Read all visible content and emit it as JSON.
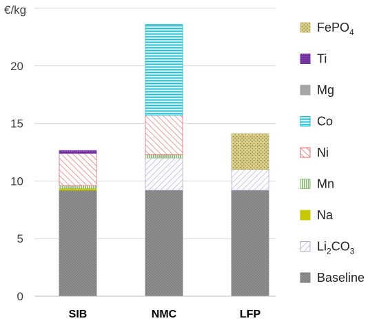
{
  "chart_data": {
    "type": "bar",
    "stacked": true,
    "ylabel": "€/kg",
    "ylim": [
      0,
      25
    ],
    "yticks": [
      0,
      5,
      10,
      15,
      20
    ],
    "grid": "horizontal",
    "legend_placement": "right",
    "categories": [
      "SIB",
      "NMC",
      "LFP"
    ],
    "series": [
      {
        "name": "Baseline",
        "values": [
          9.2,
          9.2,
          9.2
        ],
        "color": "#7f7f7f",
        "pattern": "dots-dark"
      },
      {
        "name": "Li2CO3",
        "values": [
          0.0,
          2.8,
          1.8
        ],
        "color": "#b4a7d6",
        "pattern": "diag-purple"
      },
      {
        "name": "Na",
        "values": [
          0.15,
          0.0,
          0.0
        ],
        "color": "#c8c800",
        "pattern": "solid-yellow"
      },
      {
        "name": "Mn",
        "values": [
          0.25,
          0.3,
          0.0
        ],
        "color": "#93c47d",
        "pattern": "vlines-green"
      },
      {
        "name": "Ni",
        "values": [
          2.8,
          3.4,
          0.0
        ],
        "color": "#e06666",
        "pattern": "diag-red"
      },
      {
        "name": "Co",
        "values": [
          0.0,
          7.9,
          0.0
        ],
        "color": "#17becf",
        "pattern": "hlines-cyan"
      },
      {
        "name": "Mg",
        "values": [
          0.0,
          0.0,
          0.0
        ],
        "color": "#a6a6a6",
        "pattern": "solid-grey"
      },
      {
        "name": "Ti",
        "values": [
          0.25,
          0.0,
          0.0
        ],
        "color": "#7030a0",
        "pattern": "dots-purple"
      },
      {
        "name": "FePO4",
        "values": [
          0.0,
          0.0,
          3.1
        ],
        "color": "#c9bf7a",
        "pattern": "dots-olive"
      }
    ]
  },
  "legend": {
    "items": [
      {
        "key": "FePO4",
        "base": "FePO",
        "sub": "4",
        "after": ""
      },
      {
        "key": "Ti",
        "base": "Ti",
        "sub": "",
        "after": ""
      },
      {
        "key": "Mg",
        "base": "Mg",
        "sub": "",
        "after": ""
      },
      {
        "key": "Co",
        "base": "Co",
        "sub": "",
        "after": ""
      },
      {
        "key": "Ni",
        "base": "Ni",
        "sub": "",
        "after": ""
      },
      {
        "key": "Mn",
        "base": "Mn",
        "sub": "",
        "after": ""
      },
      {
        "key": "Na",
        "base": "Na",
        "sub": "",
        "after": ""
      },
      {
        "key": "Li2CO3",
        "base": "Li",
        "sub": "2",
        "after": "CO",
        "sub2": "3"
      },
      {
        "key": "Baseline",
        "base": "Baseline",
        "sub": "",
        "after": ""
      }
    ]
  }
}
